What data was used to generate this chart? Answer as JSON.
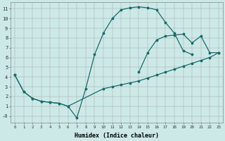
{
  "background_color": "#cce9e8",
  "line_color": "#1a6b6b",
  "xlabel": "Humidex (Indice chaleur)",
  "curve_top_x": [
    0,
    1,
    2,
    3,
    4,
    5,
    6,
    7,
    8,
    9,
    10,
    11,
    12,
    13,
    14,
    15,
    16,
    17,
    18,
    19,
    20
  ],
  "curve_top_y": [
    4.2,
    2.5,
    1.8,
    1.5,
    1.4,
    1.3,
    1.0,
    -0.2,
    2.8,
    6.3,
    8.5,
    10.0,
    10.9,
    11.1,
    11.2,
    11.1,
    10.9,
    9.6,
    8.5,
    6.7,
    6.3
  ],
  "curve_mid_x": [
    14,
    15,
    16,
    17,
    18,
    19,
    20,
    21,
    22,
    23
  ],
  "curve_mid_y": [
    4.5,
    6.5,
    7.8,
    8.2,
    8.3,
    8.4,
    7.5,
    8.2,
    6.5,
    6.5
  ],
  "curve_bot_x": [
    0,
    1,
    2,
    3,
    4,
    5,
    6,
    10,
    11,
    12,
    13,
    14,
    15,
    16,
    17,
    18,
    19,
    20,
    21,
    22,
    23
  ],
  "curve_bot_y": [
    4.2,
    2.5,
    1.8,
    1.5,
    1.4,
    1.3,
    1.0,
    2.8,
    3.0,
    3.2,
    3.4,
    3.6,
    3.9,
    4.2,
    4.5,
    4.8,
    5.1,
    5.4,
    5.7,
    6.0,
    6.5
  ],
  "xlim": [
    -0.5,
    23.5
  ],
  "ylim": [
    -0.7,
    11.7
  ],
  "xticks": [
    0,
    1,
    2,
    3,
    4,
    5,
    6,
    7,
    8,
    9,
    10,
    11,
    12,
    13,
    14,
    15,
    16,
    17,
    18,
    19,
    20,
    21,
    22,
    23
  ],
  "yticks": [
    0,
    1,
    2,
    3,
    4,
    5,
    6,
    7,
    8,
    9,
    10,
    11
  ],
  "ytick_labels": [
    "-0",
    "1",
    "2",
    "3",
    "4",
    "5",
    "6",
    "7",
    "8",
    "9",
    "10",
    "11"
  ]
}
